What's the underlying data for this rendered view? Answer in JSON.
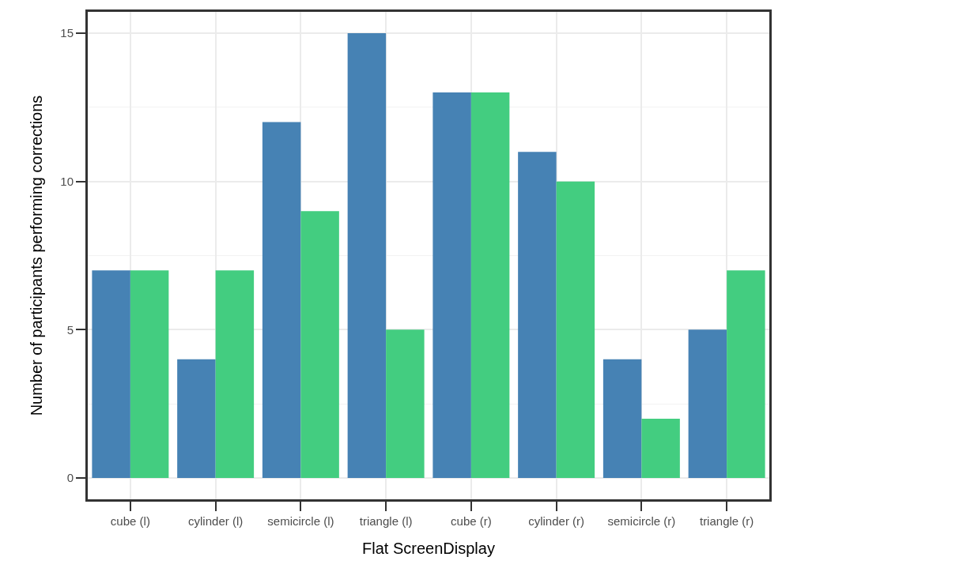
{
  "chart_data": {
    "type": "bar",
    "xlabel": "Flat ScreenDisplay",
    "ylabel": "Number of participants performing corrections",
    "categories": [
      "cube (l)",
      "cylinder (l)",
      "semicircle (l)",
      "triangle (l)",
      "cube (r)",
      "cylinder (r)",
      "semicircle (r)",
      "triangle (r)"
    ],
    "series": [
      {
        "color": "#4682b4",
        "values": [
          7,
          4,
          12,
          15,
          13,
          11,
          4,
          5
        ]
      },
      {
        "color": "#43cd80",
        "values": [
          7,
          7,
          9,
          5,
          13,
          10,
          2,
          7
        ]
      }
    ],
    "ylim": [
      -0.72,
      15.72
    ],
    "yticks": [
      0,
      5,
      10,
      15
    ],
    "grid": true
  }
}
